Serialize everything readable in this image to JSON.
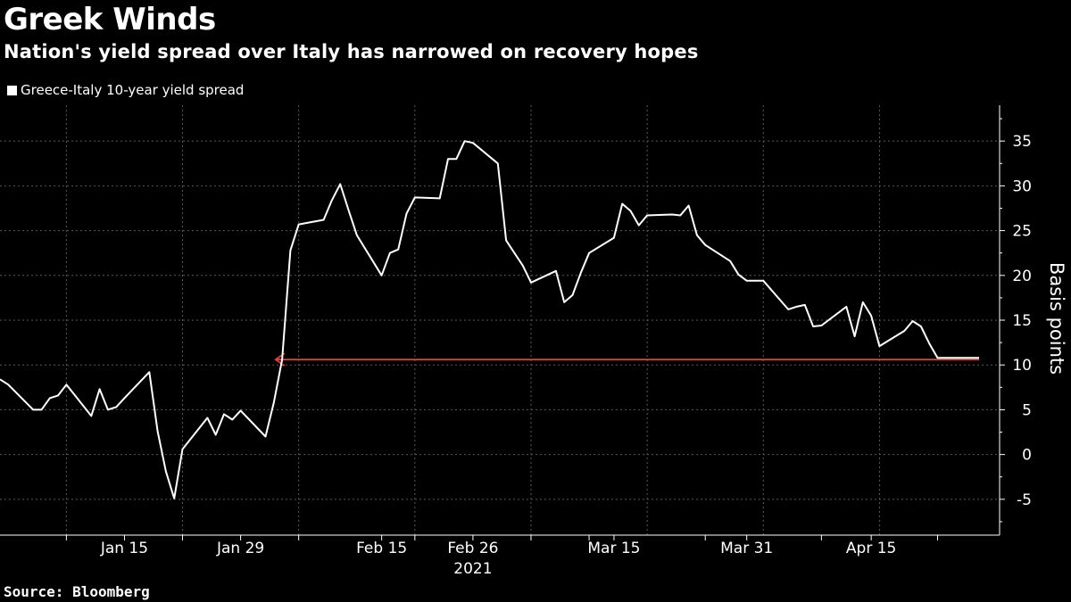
{
  "header": {
    "title": "Greek Winds",
    "subtitle": "Nation's yield spread over Italy has narrowed on recovery hopes"
  },
  "footer": {
    "source": "Source: Bloomberg"
  },
  "colors": {
    "background": "#000000",
    "line": "#ffffff",
    "grid": "#5a5a5a",
    "reference_arrow": "#e0413f"
  },
  "chart_data": {
    "type": "line",
    "title": "Greek Winds",
    "subtitle": "Nation's yield spread over Italy has narrowed on recovery hopes",
    "ylabel": "Basis points",
    "xlabel": "",
    "year_label": "2021",
    "legend": "top-left",
    "grid": true,
    "ylim": [
      -9,
      39
    ],
    "yticks": [
      -5,
      0,
      5,
      10,
      15,
      20,
      25,
      30,
      35
    ],
    "x_start": "2020-12-31",
    "x_end": "2021-04-28",
    "x_tick_labels": [
      {
        "date": "2021-01-15",
        "label": "Jan 15"
      },
      {
        "date": "2021-01-29",
        "label": "Jan 29"
      },
      {
        "date": "2021-02-15",
        "label": "Feb 15"
      },
      {
        "date": "2021-02-26",
        "label": "Feb 26"
      },
      {
        "date": "2021-03-15",
        "label": "Mar 15"
      },
      {
        "date": "2021-03-31",
        "label": "Mar 31"
      },
      {
        "date": "2021-04-15",
        "label": "Apr 15"
      }
    ],
    "x_minor_ticks": [
      "2021-01-08",
      "2021-01-22",
      "2021-02-05",
      "2021-02-19",
      "2021-03-05",
      "2021-03-12",
      "2021-03-26",
      "2021-04-09",
      "2021-04-23"
    ],
    "x_grid": [
      "2021-01-08",
      "2021-01-22",
      "2021-02-05",
      "2021-02-19",
      "2021-03-05",
      "2021-03-19",
      "2021-04-02",
      "2021-04-16"
    ],
    "series": [
      {
        "name": "Greece-Italy 10-year yield spread",
        "x": [
          "2020-12-31",
          "2021-01-01",
          "2021-01-04",
          "2021-01-05",
          "2021-01-06",
          "2021-01-07",
          "2021-01-08",
          "2021-01-11",
          "2021-01-12",
          "2021-01-13",
          "2021-01-14",
          "2021-01-15",
          "2021-01-18",
          "2021-01-19",
          "2021-01-20",
          "2021-01-21",
          "2021-01-22",
          "2021-01-25",
          "2021-01-26",
          "2021-01-27",
          "2021-01-28",
          "2021-01-29",
          "2021-02-01",
          "2021-02-02",
          "2021-02-03",
          "2021-02-04",
          "2021-02-05",
          "2021-02-08",
          "2021-02-09",
          "2021-02-10",
          "2021-02-11",
          "2021-02-12",
          "2021-02-15",
          "2021-02-16",
          "2021-02-17",
          "2021-02-18",
          "2021-02-19",
          "2021-02-22",
          "2021-02-23",
          "2021-02-24",
          "2021-02-25",
          "2021-02-26",
          "2021-03-01",
          "2021-03-02",
          "2021-03-03",
          "2021-03-04",
          "2021-03-05",
          "2021-03-08",
          "2021-03-09",
          "2021-03-10",
          "2021-03-11",
          "2021-03-12",
          "2021-03-15",
          "2021-03-16",
          "2021-03-17",
          "2021-03-18",
          "2021-03-19",
          "2021-03-22",
          "2021-03-23",
          "2021-03-24",
          "2021-03-25",
          "2021-03-26",
          "2021-03-29",
          "2021-03-30",
          "2021-03-31",
          "2021-04-01",
          "2021-04-02",
          "2021-04-05",
          "2021-04-06",
          "2021-04-07",
          "2021-04-08",
          "2021-04-09",
          "2021-04-12",
          "2021-04-13",
          "2021-04-14",
          "2021-04-15",
          "2021-04-16",
          "2021-04-19",
          "2021-04-20",
          "2021-04-21",
          "2021-04-22",
          "2021-04-23",
          "2021-04-26",
          "2021-04-27",
          "2021-04-28"
        ],
        "values": [
          8.4,
          7.8,
          5.0,
          5.0,
          6.3,
          6.6,
          7.8,
          4.3,
          7.3,
          5.0,
          5.3,
          6.3,
          9.2,
          2.6,
          -1.9,
          -4.9,
          0.6,
          4.1,
          2.2,
          4.5,
          3.9,
          4.9,
          2.0,
          5.8,
          10.6,
          22.8,
          25.7,
          26.2,
          28.4,
          30.2,
          27.3,
          24.5,
          20.0,
          22.5,
          22.9,
          26.9,
          28.7,
          28.6,
          33.0,
          33.0,
          35.0,
          34.8,
          32.5,
          23.9,
          22.5,
          21.1,
          19.2,
          20.5,
          17.0,
          17.8,
          20.3,
          22.5,
          24.2,
          28.0,
          27.2,
          25.6,
          26.7,
          26.8,
          26.7,
          27.8,
          24.5,
          23.4,
          21.6,
          20.1,
          19.4,
          19.4,
          19.4,
          16.2,
          16.5,
          16.7,
          14.3,
          14.4,
          16.5,
          13.2,
          17.0,
          15.5,
          12.1,
          13.8,
          14.9,
          14.3,
          12.4,
          10.8,
          10.8,
          10.8,
          10.8
        ]
      }
    ],
    "reference_arrow": {
      "from_date": "2021-04-28",
      "to_date": "2021-02-02",
      "value": 10.6
    }
  }
}
